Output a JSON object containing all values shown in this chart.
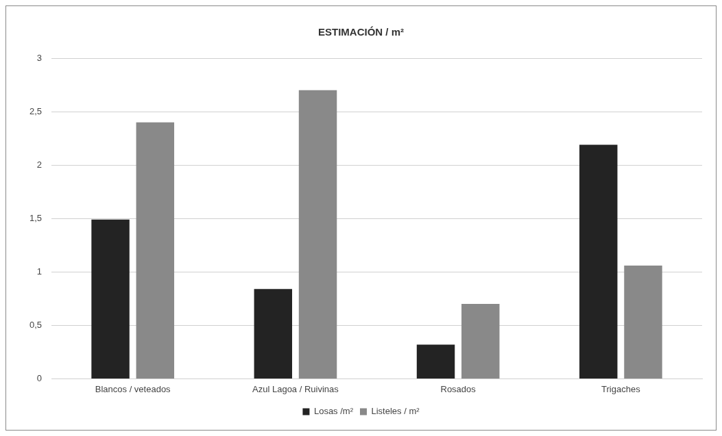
{
  "chart_data": {
    "type": "bar",
    "title": "ESTIMACIÓN / m²",
    "categories": [
      "Blancos / veteados",
      "Azul Lagoa / Ruivinas",
      "Rosados",
      "Trigaches"
    ],
    "series": [
      {
        "name": "Losas /m²",
        "color": "#232323",
        "values": [
          1.49,
          0.84,
          0.32,
          2.19
        ]
      },
      {
        "name": "Listeles / m²",
        "color": "#898989",
        "values": [
          2.4,
          2.7,
          0.7,
          1.06
        ]
      }
    ],
    "ylim": [
      0,
      3
    ],
    "yticks": [
      0,
      {
        "value": 0.5,
        "label": "0,5"
      },
      1,
      {
        "value": 1.5,
        "label": "1,5"
      },
      2,
      {
        "value": 2.5,
        "label": "2,5"
      },
      3
    ],
    "grid": "y",
    "legend": "bottom"
  }
}
